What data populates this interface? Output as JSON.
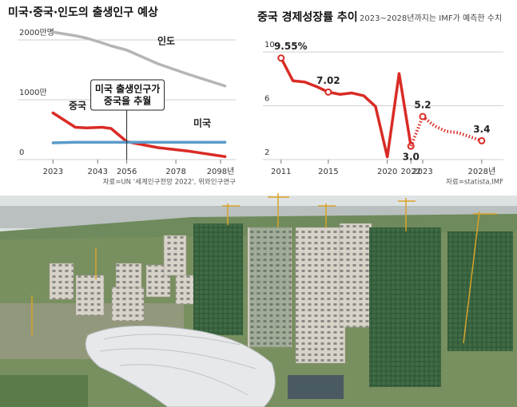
{
  "chart_data": [
    {
      "type": "line",
      "title": "미국·중국·인도의 출생인구 예상",
      "x": [
        2023,
        2033,
        2038,
        2045,
        2049,
        2056,
        2070,
        2084,
        2100
      ],
      "series": [
        {
          "name": "중국",
          "color": "#d92b25",
          "values": [
            780,
            540,
            530,
            540,
            520,
            300,
            200,
            140,
            50
          ]
        },
        {
          "name": "미국",
          "color": "#5b9bc9",
          "values": [
            280,
            290,
            290,
            290,
            290,
            290,
            290,
            290,
            290
          ]
        },
        {
          "name": "인도",
          "color": "#b5b5b5",
          "values": [
            2130,
            2070,
            2030,
            1950,
            1900,
            1830,
            1600,
            1420,
            1230
          ]
        }
      ],
      "xlim": [
        2010,
        2103
      ],
      "xticks": [
        2023,
        2043,
        2056,
        2078,
        {
          "value": 2098,
          "label": "2098년"
        }
      ],
      "ylim": [
        0,
        2200
      ],
      "yticks": [
        0,
        {
          "value": 1000,
          "label": "1000만"
        },
        {
          "value": 2000,
          "label": "2000만명"
        }
      ],
      "grid": true,
      "annotation": [
        "미국 출생인구가",
        "중국을 추월"
      ],
      "source": "자료=UN '세계인구전망 2022', 위와인구연구"
    },
    {
      "type": "line",
      "title": "중국 경제성장률 추이",
      "subtitle": "2023~2028년까지는 IMF가 예측한 수치",
      "x": [
        2011,
        2012,
        2013,
        2014,
        2015,
        2016,
        2017,
        2018,
        2019,
        2020,
        2021,
        2022,
        2023,
        2024,
        2025,
        2026,
        2027,
        2028
      ],
      "series": [
        {
          "color": "#d92b25",
          "dashed": false,
          "values": [
            9.55,
            7.86,
            7.77,
            7.43,
            7.02,
            6.85,
            6.95,
            6.75,
            5.95,
            2.2,
            8.4,
            3.0,
            null,
            null,
            null,
            null,
            null,
            null
          ],
          "value_labels": [
            "9.55%",
            null,
            null,
            null,
            "7.02",
            null,
            null,
            null,
            null,
            null,
            null,
            "3.0",
            null,
            null,
            null,
            null,
            null,
            null
          ]
        },
        {
          "color": "#d92b25",
          "dashed": true,
          "values": [
            null,
            null,
            null,
            null,
            null,
            null,
            null,
            null,
            null,
            null,
            null,
            3.0,
            5.2,
            4.5,
            4.1,
            4.0,
            3.7,
            3.4
          ],
          "value_labels": [
            null,
            null,
            null,
            null,
            null,
            null,
            null,
            null,
            null,
            null,
            null,
            null,
            "5.2",
            null,
            null,
            null,
            null,
            "3.4"
          ]
        }
      ],
      "xlim": [
        2010,
        2029.5
      ],
      "xticks": [
        2011,
        2015,
        2020,
        2022,
        2023,
        {
          "value": 2028,
          "label": "2028년"
        }
      ],
      "ylim": [
        2,
        10.6
      ],
      "yticks": [
        2,
        6,
        10
      ],
      "grid": true,
      "source": "자료=statista,IMF"
    }
  ]
}
